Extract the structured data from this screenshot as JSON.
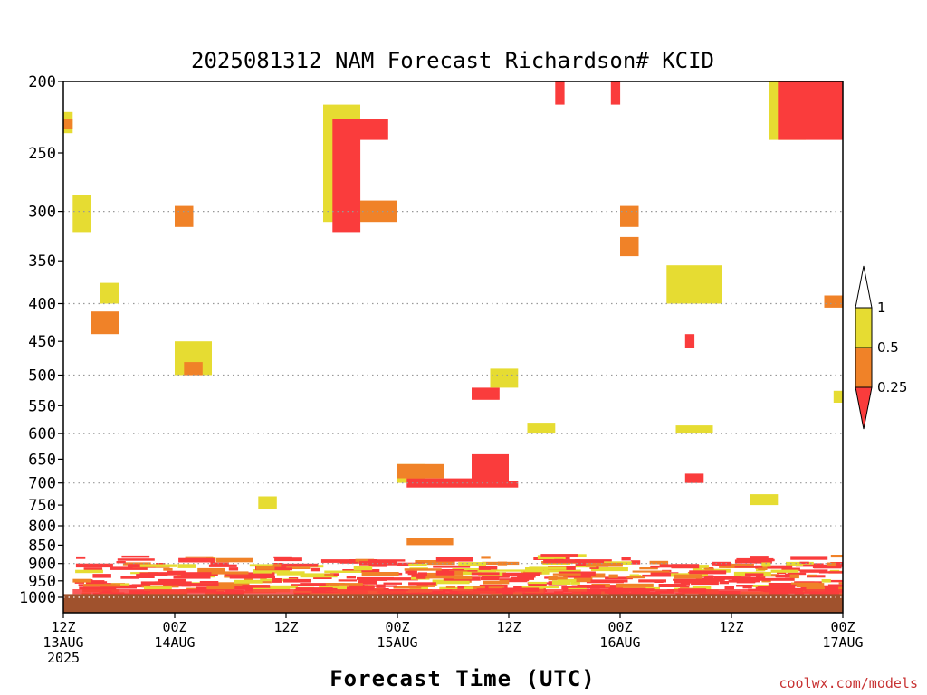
{
  "chart_data": {
    "type": "heatmap",
    "title": "2025081312 NAM Forecast Richardson# KCID",
    "xlabel": "Forecast Time (UTC)",
    "ylabel": "",
    "credit": "coolwx.com/models",
    "y_axis": {
      "unit": "hPa",
      "scale": "log-pressure",
      "range": [
        1000,
        200
      ],
      "ticks": [
        200,
        250,
        300,
        350,
        400,
        450,
        500,
        550,
        600,
        650,
        700,
        750,
        800,
        850,
        900,
        950,
        1000
      ],
      "grid_dotted": [
        300,
        400,
        500,
        600,
        700,
        800,
        900,
        1000
      ]
    },
    "x_axis": {
      "start": "2025-08-13 12Z",
      "end": "2025-08-17 00Z",
      "ticks": [
        {
          "t": "2025-08-13 12Z",
          "lines": [
            "12Z",
            "13AUG",
            "2025"
          ]
        },
        {
          "t": "2025-08-14 00Z",
          "lines": [
            "00Z",
            "14AUG"
          ]
        },
        {
          "t": "2025-08-14 12Z",
          "lines": [
            "12Z"
          ]
        },
        {
          "t": "2025-08-15 00Z",
          "lines": [
            "00Z",
            "15AUG"
          ]
        },
        {
          "t": "2025-08-15 12Z",
          "lines": [
            "12Z"
          ]
        },
        {
          "t": "2025-08-16 00Z",
          "lines": [
            "00Z",
            "16AUG"
          ]
        },
        {
          "t": "2025-08-16 12Z",
          "lines": [
            "12Z"
          ]
        },
        {
          "t": "2025-08-17 00Z",
          "lines": [
            "00Z",
            "17AUG"
          ]
        }
      ]
    },
    "legend": {
      "placement": "right",
      "levels": [
        {
          "range": "> 1",
          "color": "#ffffff"
        },
        {
          "range": "0.5 - 1",
          "color": "#e6dc32"
        },
        {
          "range": "0.25 - 0.5",
          "color": "#f08228"
        },
        {
          "range": "< 0.25",
          "color": "#fa3c3c"
        }
      ],
      "labels": [
        "1",
        "0.5",
        "0.25"
      ]
    },
    "ground": {
      "pressure_hPa": 990,
      "color": "#a0522d"
    },
    "regions": [
      {
        "category": "0.5-1",
        "time": "08-13 12Z - 13Z",
        "p": [
          220,
          235
        ]
      },
      {
        "category": "0.25-0.5",
        "time": "08-13 12Z - 13Z",
        "p": [
          225,
          232
        ]
      },
      {
        "category": "0.5-1",
        "time": "08-13 13Z - 15Z",
        "p": [
          285,
          320
        ]
      },
      {
        "category": "0.5-1",
        "time": "08-13 16Z - 18Z",
        "p": [
          375,
          400
        ]
      },
      {
        "category": "0.25-0.5",
        "time": "08-13 15Z - 18Z",
        "p": [
          410,
          440
        ]
      },
      {
        "category": "0.25-0.5",
        "time": "08-14 00Z - 02Z",
        "p": [
          295,
          315
        ]
      },
      {
        "category": "0.5-1",
        "time": "08-14 00Z - 04Z",
        "p": [
          450,
          500
        ]
      },
      {
        "category": "0.25-0.5",
        "time": "08-14 01Z - 03Z",
        "p": [
          480,
          500
        ]
      },
      {
        "category": "0.5-1",
        "time": "08-14 09Z - 11Z",
        "p": [
          730,
          760
        ]
      },
      {
        "category": "0.5-1",
        "time": "08-14 16Z - 20Z",
        "p": [
          215,
          310
        ]
      },
      {
        "category": "< 0.25",
        "time": "08-14 17Z - 20Z",
        "p": [
          225,
          320
        ]
      },
      {
        "category": "< 0.25",
        "time": "08-14 20Z - 23Z",
        "p": [
          225,
          240
        ]
      },
      {
        "category": "0.25-0.5",
        "time": "08-14 20Z - 00Z",
        "p": [
          290,
          310
        ]
      },
      {
        "category": "0.5-1",
        "time": "08-15 00Z - 03Z",
        "p": [
          660,
          700
        ]
      },
      {
        "category": "0.25-0.5",
        "time": "08-15 00Z - 05Z",
        "p": [
          660,
          690
        ]
      },
      {
        "category": "< 0.25",
        "time": "08-15 01Z - 08Z",
        "p": [
          690,
          710
        ]
      },
      {
        "category": "0.25-0.5",
        "time": "08-15 01Z - 06Z",
        "p": [
          830,
          850
        ]
      },
      {
        "category": "< 0.25",
        "time": "08-15 08Z - 11Z",
        "p": [
          520,
          540
        ]
      },
      {
        "category": "< 0.25",
        "time": "08-15 08Z - 12Z",
        "p": [
          640,
          700
        ]
      },
      {
        "category": "< 0.25",
        "time": "08-15 08Z - 13Z",
        "p": [
          695,
          710
        ]
      },
      {
        "category": "0.5-1",
        "time": "08-15 10Z - 13Z",
        "p": [
          490,
          520
        ]
      },
      {
        "category": "0.5-1",
        "time": "08-15 14Z - 17Z",
        "p": [
          580,
          600
        ]
      },
      {
        "category": "< 0.25",
        "time": "08-15 17Z - 18Z",
        "p": [
          200,
          215
        ]
      },
      {
        "category": "< 0.25",
        "time": "08-15 23Z - 00Z",
        "p": [
          200,
          215
        ]
      },
      {
        "category": "0.25-0.5",
        "time": "08-16 00Z - 02Z",
        "p": [
          295,
          315
        ]
      },
      {
        "category": "0.25-0.5",
        "time": "08-16 00Z - 02Z",
        "p": [
          325,
          345
        ]
      },
      {
        "category": "0.5-1",
        "time": "08-16 05Z - 11Z",
        "p": [
          355,
          400
        ]
      },
      {
        "category": "< 0.25",
        "time": "08-16 07Z - 08Z",
        "p": [
          440,
          460
        ]
      },
      {
        "category": "0.5-1",
        "time": "08-16 06Z - 10Z",
        "p": [
          585,
          600
        ]
      },
      {
        "category": "< 0.25",
        "time": "08-16 07Z - 09Z",
        "p": [
          680,
          700
        ]
      },
      {
        "category": "0.5-1",
        "time": "08-16 14Z - 17Z",
        "p": [
          725,
          750
        ]
      },
      {
        "category": "0.5-1",
        "time": "08-16 16Z - 20Z",
        "p": [
          200,
          240
        ]
      },
      {
        "category": "< 0.25",
        "time": "08-16 17Z - 00Z",
        "p": [
          200,
          240
        ]
      },
      {
        "category": "0.25-0.5",
        "time": "08-16 22Z - 00Z",
        "p": [
          390,
          405
        ]
      },
      {
        "category": "0.5-1",
        "time": "08-16 23Z - 00Z",
        "p": [
          525,
          545
        ]
      },
      {
        "category": "near-surface mix",
        "time": "08-13 13Z - 08-17 00Z",
        "p": [
          870,
          990
        ]
      }
    ]
  }
}
